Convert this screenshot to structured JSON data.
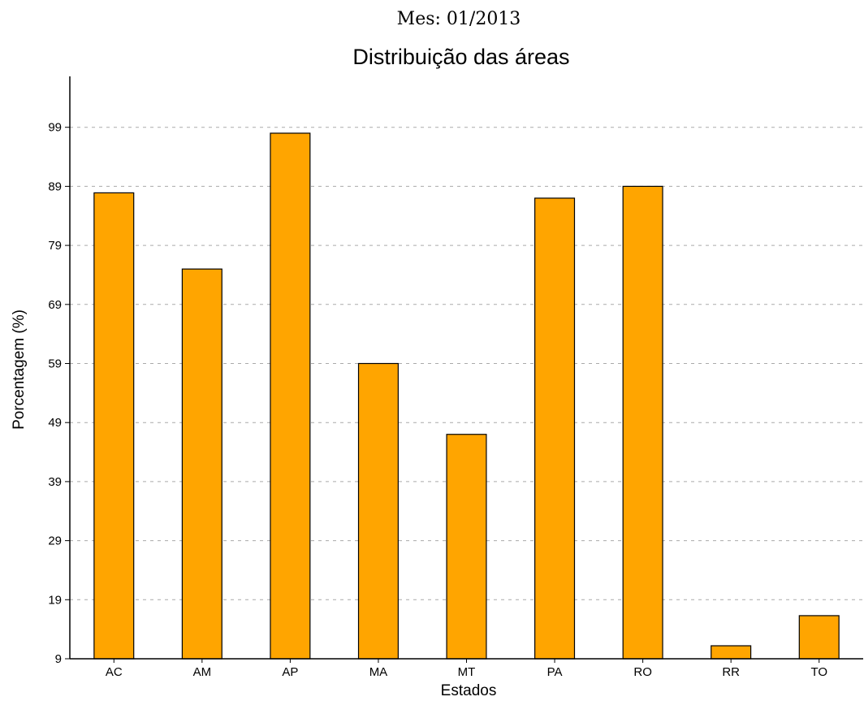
{
  "chart_data": {
    "type": "bar",
    "supertitle": "Mes: 01/2013",
    "title": "Distribuição das áreas",
    "xlabel": "Estados",
    "ylabel": "Porcentagem (%)",
    "categories": [
      "AC",
      "AM",
      "AP",
      "MA",
      "MT",
      "PA",
      "RO",
      "RR",
      "TO"
    ],
    "values": [
      87.9,
      75,
      98,
      59,
      47,
      87,
      89,
      11.2,
      16.3
    ],
    "yticks": [
      "9",
      "19",
      "29",
      "39",
      "49",
      "59",
      "69",
      "79",
      "89",
      "99"
    ],
    "ylim": [
      9,
      108
    ],
    "grid": true,
    "bar_color": "#FFA500"
  }
}
